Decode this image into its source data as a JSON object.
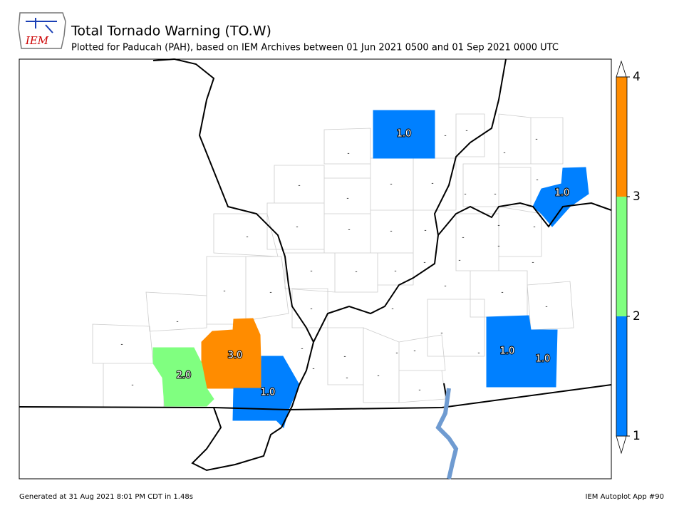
{
  "header": {
    "logo": "IEM",
    "title": "Total Tornado Warning (TO.W)",
    "subtitle": "Plotted for Paducah (PAH), based on IEM Archives  between 01 Jun 2021 0500 and 01 Sep 2021 0000 UTC"
  },
  "map": {
    "colorbar": {
      "ticks": [
        1,
        2,
        3,
        4
      ],
      "colors": [
        "#0080ff",
        "#80ff80",
        "#ff8c00"
      ]
    },
    "counties": [
      {
        "value": 1,
        "label": "1.0"
      },
      {
        "value": 1,
        "label": "1.0"
      },
      {
        "value": 3,
        "label": "3.0"
      },
      {
        "value": 2,
        "label": "2.0"
      },
      {
        "value": 1,
        "label": "1.0"
      },
      {
        "value": 1,
        "label": "1.0"
      },
      {
        "value": 1,
        "label": "1.0"
      },
      {
        "label": "-"
      },
      {
        "label": "-"
      },
      {
        "label": "-"
      },
      {
        "label": "-"
      },
      {
        "label": "-"
      },
      {
        "label": "-"
      },
      {
        "label": "-"
      },
      {
        "label": "-"
      },
      {
        "label": "-"
      },
      {
        "label": "-"
      },
      {
        "label": "-"
      },
      {
        "label": "-"
      },
      {
        "label": "-"
      },
      {
        "label": "-"
      },
      {
        "label": "-"
      },
      {
        "label": "-"
      },
      {
        "label": "-"
      },
      {
        "label": "-"
      },
      {
        "label": "-"
      },
      {
        "label": "-"
      },
      {
        "label": "-"
      },
      {
        "label": "-"
      },
      {
        "label": "-"
      },
      {
        "label": "-"
      },
      {
        "label": "-"
      },
      {
        "label": "-"
      },
      {
        "label": "-"
      },
      {
        "label": "-"
      },
      {
        "label": "-"
      },
      {
        "label": "-"
      },
      {
        "label": "-"
      },
      {
        "label": "-"
      },
      {
        "label": "-"
      },
      {
        "label": "-"
      },
      {
        "label": "-"
      },
      {
        "label": "-"
      },
      {
        "label": "-"
      },
      {
        "label": "-"
      },
      {
        "label": "-"
      },
      {
        "label": "-"
      },
      {
        "label": "-"
      },
      {
        "label": "-"
      },
      {
        "label": "-"
      },
      {
        "label": "-"
      },
      {
        "label": "-"
      },
      {
        "label": "-"
      },
      {
        "label": "-"
      },
      {
        "label": "-"
      }
    ]
  },
  "footer": {
    "left": "Generated at 31 Aug 2021 8:01 PM CDT in 1.48s",
    "right": "IEM Autoplot App #90"
  }
}
